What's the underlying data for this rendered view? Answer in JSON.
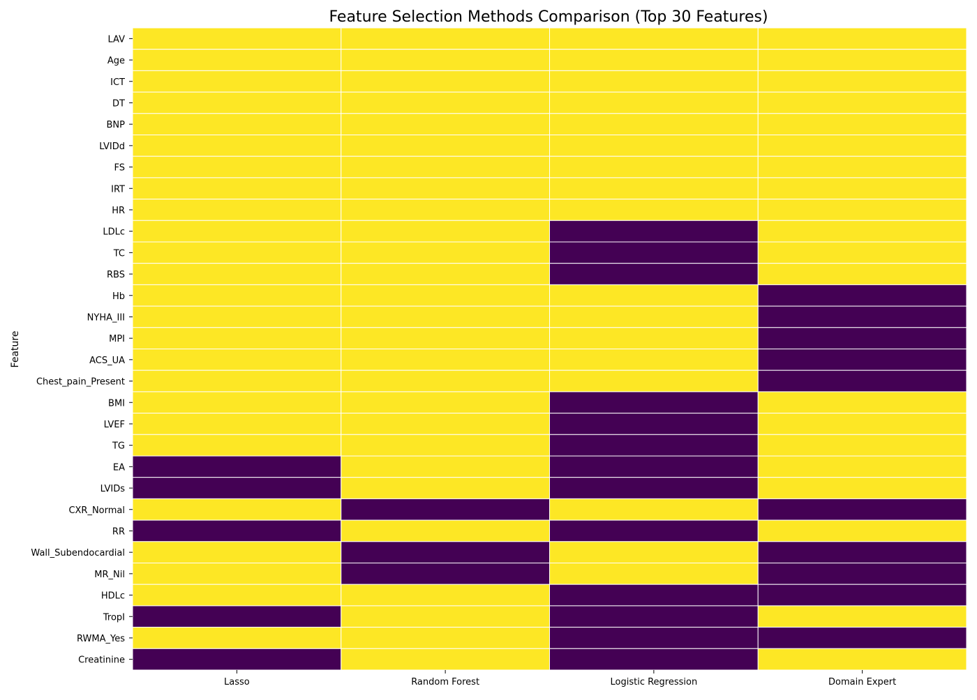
{
  "chart_data": {
    "type": "heatmap",
    "title": "Feature Selection Methods Comparison (Top 30 Features)",
    "xlabel": "",
    "ylabel": "Feature",
    "colormap": "viridis",
    "colors": {
      "selected": "#fde725",
      "not_selected": "#440154",
      "grid_line": "#ffffff"
    },
    "value_meaning": {
      "1": "selected",
      "0": "not selected"
    },
    "colorbar": false,
    "methods": [
      "Lasso",
      "Random Forest",
      "Logistic Regression",
      "Domain Expert"
    ],
    "features": [
      "LAV",
      "Age",
      "ICT",
      "DT",
      "BNP",
      "LVIDd",
      "FS",
      "IRT",
      "HR",
      "LDLc",
      "TC",
      "RBS",
      "Hb",
      "NYHA_III",
      "MPI",
      "ACS_UA",
      "Chest_pain_Present",
      "BMI",
      "LVEF",
      "TG",
      "EA",
      "LVIDs",
      "CXR_Normal",
      "RR",
      "Wall_Subendocardial",
      "MR_Nil",
      "HDLc",
      "TropI",
      "RWMA_Yes",
      "Creatinine"
    ],
    "values": [
      [
        1,
        1,
        1,
        1
      ],
      [
        1,
        1,
        1,
        1
      ],
      [
        1,
        1,
        1,
        1
      ],
      [
        1,
        1,
        1,
        1
      ],
      [
        1,
        1,
        1,
        1
      ],
      [
        1,
        1,
        1,
        1
      ],
      [
        1,
        1,
        1,
        1
      ],
      [
        1,
        1,
        1,
        1
      ],
      [
        1,
        1,
        1,
        1
      ],
      [
        1,
        1,
        0,
        1
      ],
      [
        1,
        1,
        0,
        1
      ],
      [
        1,
        1,
        0,
        1
      ],
      [
        1,
        1,
        1,
        0
      ],
      [
        1,
        1,
        1,
        0
      ],
      [
        1,
        1,
        1,
        0
      ],
      [
        1,
        1,
        1,
        0
      ],
      [
        1,
        1,
        1,
        0
      ],
      [
        1,
        1,
        0,
        1
      ],
      [
        1,
        1,
        0,
        1
      ],
      [
        1,
        1,
        0,
        1
      ],
      [
        0,
        1,
        0,
        1
      ],
      [
        0,
        1,
        0,
        1
      ],
      [
        1,
        0,
        1,
        0
      ],
      [
        0,
        1,
        0,
        1
      ],
      [
        1,
        0,
        1,
        0
      ],
      [
        1,
        0,
        1,
        0
      ],
      [
        1,
        1,
        0,
        0
      ],
      [
        0,
        1,
        0,
        1
      ],
      [
        1,
        1,
        0,
        0
      ],
      [
        0,
        1,
        0,
        1
      ]
    ]
  }
}
